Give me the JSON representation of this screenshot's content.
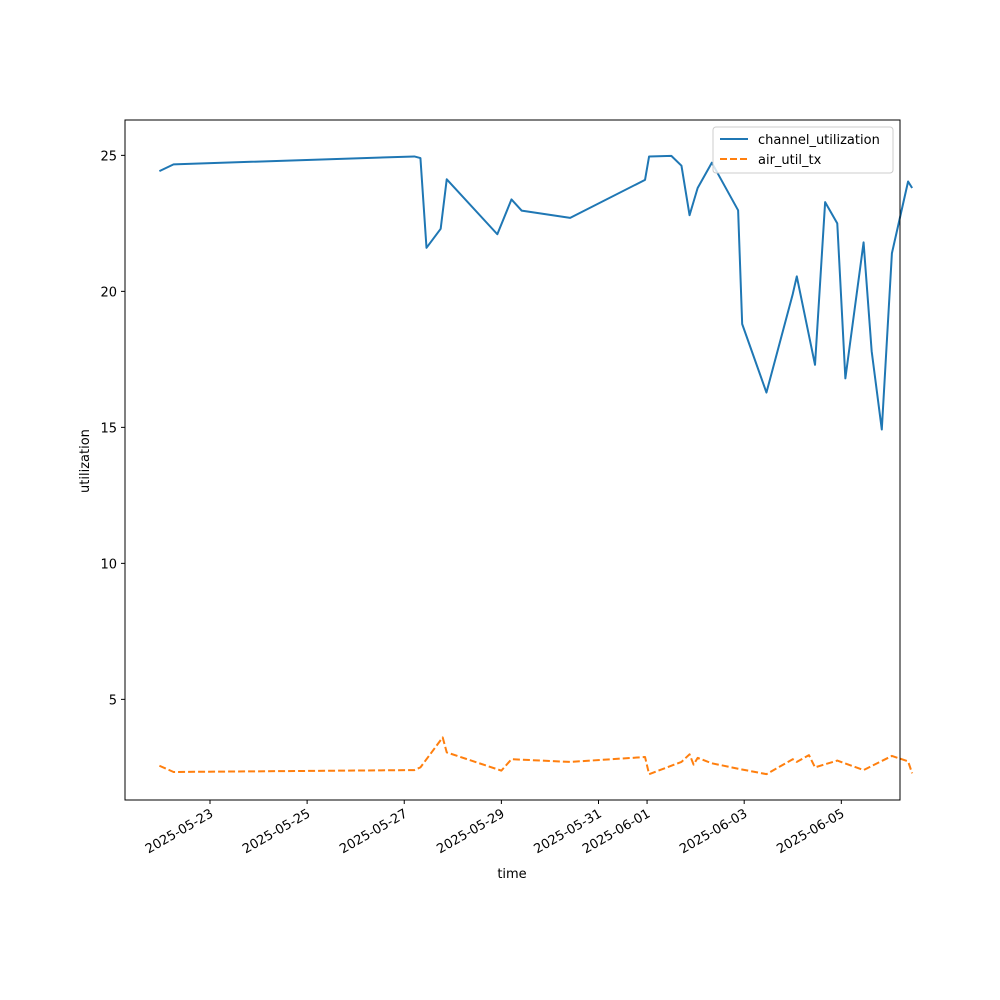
{
  "chart_data": {
    "type": "line",
    "title": "",
    "xlabel": "time",
    "ylabel": "utilization",
    "xlim": [
      "2025-05-21T06:00",
      "2025-06-06T05:00"
    ],
    "ylim": [
      1.3,
      26.3
    ],
    "xticks": [
      "2025-05-23",
      "2025-05-25",
      "2025-05-27",
      "2025-05-29",
      "2025-05-31",
      "2025-06-01",
      "2025-06-03",
      "2025-06-05"
    ],
    "yticks": [
      5,
      10,
      15,
      20,
      25
    ],
    "legend_position": "top-right",
    "grid": false,
    "series": [
      {
        "name": "channel_utilization",
        "color": "#1f77b4",
        "dash": "solid",
        "points": [
          [
            "2025-05-21T23:00",
            24.42
          ],
          [
            "2025-05-22T06:00",
            24.67
          ],
          [
            "2025-05-27T05:00",
            24.96
          ],
          [
            "2025-05-27T08:00",
            24.9
          ],
          [
            "2025-05-27T11:00",
            21.6
          ],
          [
            "2025-05-27T18:00",
            22.3
          ],
          [
            "2025-05-27T21:00",
            24.12
          ],
          [
            "2025-05-28T22:00",
            22.1
          ],
          [
            "2025-05-29T05:00",
            23.38
          ],
          [
            "2025-05-29T10:00",
            22.97
          ],
          [
            "2025-05-30T10:00",
            22.7
          ],
          [
            "2025-05-31T23:00",
            24.1
          ],
          [
            "2025-06-01T01:00",
            24.96
          ],
          [
            "2025-06-01T12:00",
            24.98
          ],
          [
            "2025-06-01T17:00",
            24.62
          ],
          [
            "2025-06-01T21:00",
            22.8
          ],
          [
            "2025-06-01T23:00",
            23.3
          ],
          [
            "2025-06-02T01:00",
            23.8
          ],
          [
            "2025-06-02T08:00",
            24.73
          ],
          [
            "2025-06-02T21:00",
            22.98
          ],
          [
            "2025-06-02T23:00",
            18.8
          ],
          [
            "2025-06-03T11:00",
            16.28
          ],
          [
            "2025-06-04T00:00",
            19.9
          ],
          [
            "2025-06-04T02:00",
            20.55
          ],
          [
            "2025-06-04T11:00",
            17.3
          ],
          [
            "2025-06-04T16:00",
            23.28
          ],
          [
            "2025-06-04T22:00",
            22.5
          ],
          [
            "2025-06-05T02:00",
            16.8
          ],
          [
            "2025-06-05T11:00",
            21.8
          ],
          [
            "2025-06-05T15:00",
            17.8
          ],
          [
            "2025-06-05T20:00",
            14.92
          ],
          [
            "2025-06-06T01:00",
            21.4
          ],
          [
            "2025-06-06T09:00",
            24.04
          ],
          [
            "2025-06-06T11:00",
            23.8
          ]
        ]
      },
      {
        "name": "air_util_tx",
        "color": "#ff7f0e",
        "dash": "dashed",
        "points": [
          [
            "2025-05-21T23:00",
            2.56
          ],
          [
            "2025-05-22T06:00",
            2.33
          ],
          [
            "2025-05-27T05:00",
            2.4
          ],
          [
            "2025-05-27T08:00",
            2.5
          ],
          [
            "2025-05-27T19:00",
            3.6
          ],
          [
            "2025-05-27T21:00",
            3.05
          ],
          [
            "2025-05-29T00:00",
            2.38
          ],
          [
            "2025-05-29T05:00",
            2.8
          ],
          [
            "2025-05-30T10:00",
            2.7
          ],
          [
            "2025-05-31T23:00",
            2.88
          ],
          [
            "2025-06-01T01:00",
            2.25
          ],
          [
            "2025-06-01T17:00",
            2.7
          ],
          [
            "2025-06-01T21:00",
            2.98
          ],
          [
            "2025-06-01T23:00",
            2.6
          ],
          [
            "2025-06-02T01:00",
            2.85
          ],
          [
            "2025-06-02T08:00",
            2.65
          ],
          [
            "2025-06-02T21:00",
            2.45
          ],
          [
            "2025-06-03T11:00",
            2.25
          ],
          [
            "2025-06-04T00:00",
            2.8
          ],
          [
            "2025-06-04T02:00",
            2.7
          ],
          [
            "2025-06-04T08:00",
            2.95
          ],
          [
            "2025-06-04T11:00",
            2.5
          ],
          [
            "2025-06-04T22:00",
            2.75
          ],
          [
            "2025-06-05T11:00",
            2.4
          ],
          [
            "2025-06-06T01:00",
            2.92
          ],
          [
            "2025-06-06T09:00",
            2.72
          ],
          [
            "2025-06-06T11:00",
            2.28
          ]
        ]
      }
    ]
  }
}
